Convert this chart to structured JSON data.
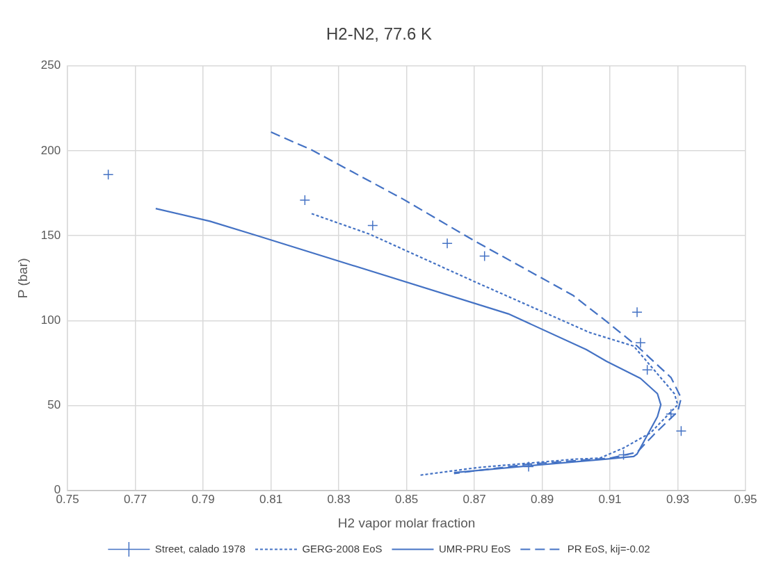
{
  "chart_data": {
    "type": "scatter",
    "title": "H2-N2, 77.6 K",
    "xlabel": "H2 vapor molar fraction",
    "ylabel": "P (bar)",
    "xlim": [
      0.75,
      0.95
    ],
    "xticks": [
      0.75,
      0.77,
      0.79,
      0.81,
      0.83,
      0.85,
      0.87,
      0.89,
      0.91,
      0.93,
      0.95
    ],
    "ylim": [
      0,
      250
    ],
    "yticks": [
      0,
      50,
      100,
      150,
      200,
      250
    ],
    "grid": true,
    "legend": "bottom",
    "series": [
      {
        "name": "Street, calado 1978",
        "type": "scatter",
        "marker": "cross",
        "color": "#4472c4",
        "x": [
          0.762,
          0.82,
          0.84,
          0.862,
          0.873,
          0.918,
          0.919,
          0.921,
          0.928,
          0.931,
          0.914,
          0.886
        ],
        "values": [
          186,
          171,
          156,
          145.5,
          138,
          105,
          87,
          71,
          45,
          35,
          21,
          14
        ]
      },
      {
        "name": "GERG-2008 EoS",
        "type": "line",
        "line_style": "dotted",
        "marker": "none",
        "color": "#4472c4",
        "x": [
          0.822,
          0.839,
          0.87,
          0.904,
          0.917,
          0.929,
          0.93,
          0.922,
          0.914,
          0.907,
          0.9,
          0.871,
          0.854
        ],
        "values": [
          163,
          151,
          123,
          93,
          85,
          57,
          50.5,
          34,
          25,
          19,
          18.5,
          13.5,
          9
        ]
      },
      {
        "name": "UMR-PRU EoS",
        "type": "line",
        "line_style": "solid",
        "marker": "none",
        "color": "#4472c4",
        "x": [
          0.776,
          0.792,
          0.806,
          0.88,
          0.903,
          0.909,
          0.919,
          0.924,
          0.925,
          0.924,
          0.918,
          0.917,
          0.909,
          0.886,
          0.864
        ],
        "values": [
          166,
          158.5,
          150,
          104,
          83,
          76,
          66,
          57,
          50.5,
          43.5,
          21.5,
          20,
          18.5,
          14.5,
          10.5
        ]
      },
      {
        "name": "PR EoS, kij=-0.02",
        "type": "line",
        "line_style": "dashed",
        "marker": "none",
        "color": "#4472c4",
        "x": [
          0.81,
          0.822,
          0.849,
          0.87,
          0.899,
          0.909,
          0.918,
          0.928,
          0.931,
          0.93,
          0.923,
          0.918,
          0.91,
          0.886,
          0.864
        ],
        "values": [
          211,
          200.5,
          171.5,
          147,
          115,
          99.5,
          85,
          66.5,
          54.5,
          46.5,
          33,
          22.5,
          19,
          15.5,
          10
        ]
      }
    ]
  }
}
